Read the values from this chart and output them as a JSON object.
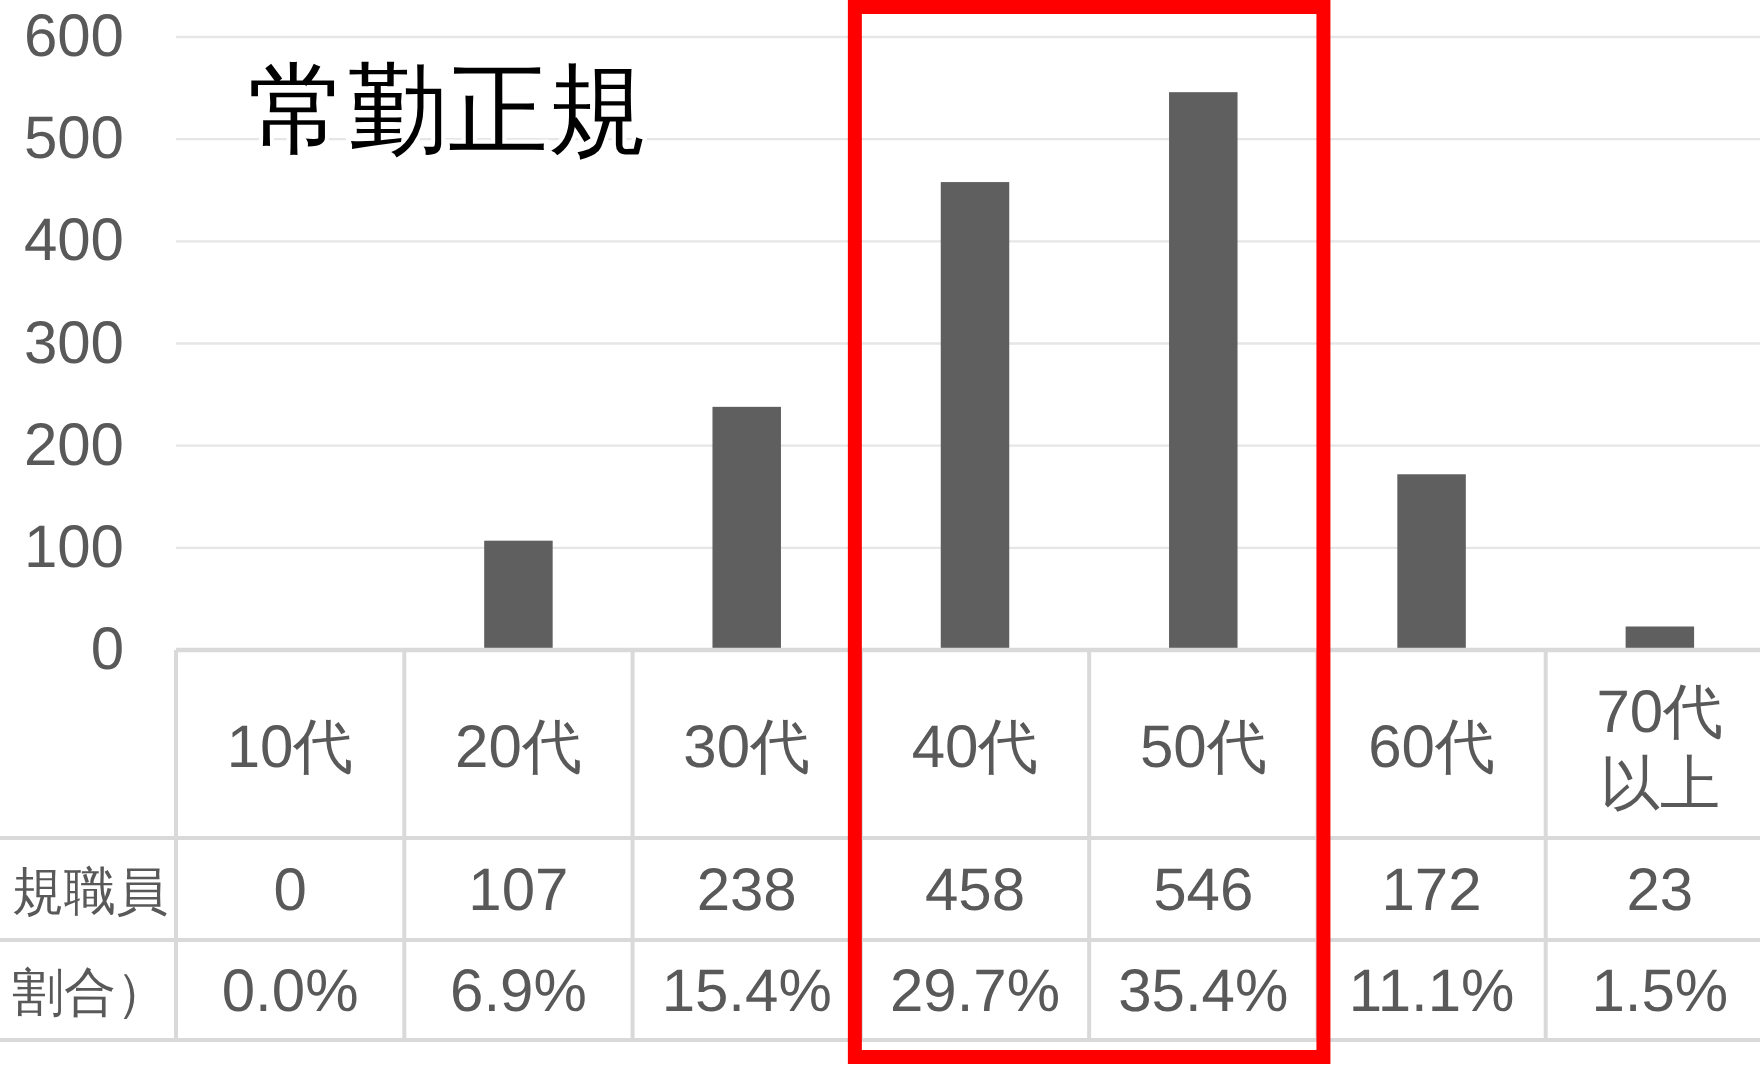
{
  "chart_data": {
    "type": "bar",
    "title": "常勤正規",
    "categories": [
      "10代",
      "20代",
      "30代",
      "40代",
      "50代",
      "60代",
      "70代以上"
    ],
    "series": [
      {
        "name": "規職員",
        "color": "#5f5f5f",
        "values": [
          0,
          107,
          238,
          458,
          546,
          172,
          23
        ]
      }
    ],
    "ylim": [
      0,
      600
    ],
    "yticks": [
      0,
      100,
      200,
      300,
      400,
      500,
      600
    ],
    "grid": "y",
    "data_labels": true,
    "annotations": [
      "割合）",
      "0.0%",
      "6.9%",
      "15.4%",
      "29.7%",
      "35.4%",
      "11.1%",
      "1.5%"
    ]
  }
}
